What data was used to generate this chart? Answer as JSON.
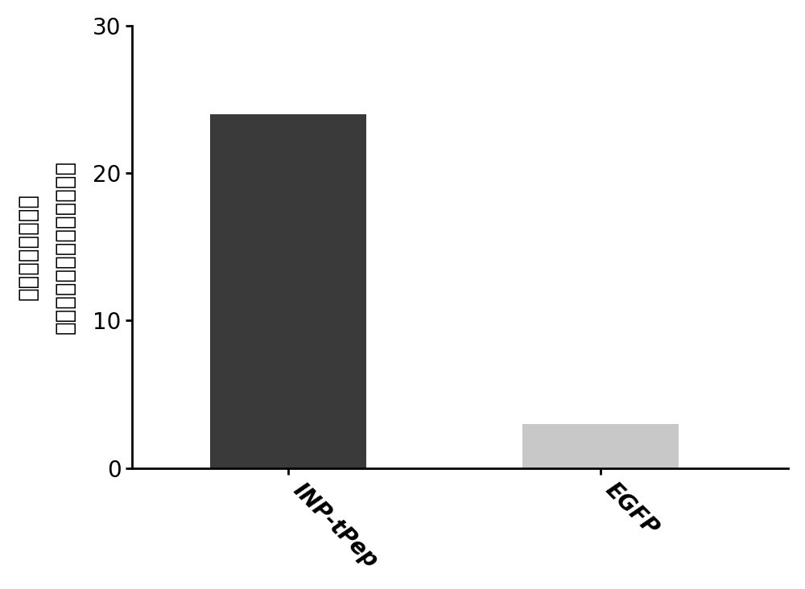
{
  "categories": [
    "INP-tPep",
    "EGFP"
  ],
  "values": [
    24,
    3
  ],
  "bar_colors": [
    "#3a3a3a",
    "#c8c8c8"
  ],
  "bar_width": 0.5,
  "ylim": [
    0,
    30
  ],
  "yticks": [
    0,
    10,
    20,
    30
  ],
  "ylabel_line1": "随机单个视野中的",
  "ylabel_line2": "细菌粘附个数（荧光点个数）",
  "background_color": "#ffffff",
  "tick_fontsize": 20,
  "ylabel_fontsize": 20,
  "xtick_rotation": -45,
  "bar_positions": [
    0.5,
    1.5
  ],
  "xlim": [
    0.0,
    2.1
  ]
}
